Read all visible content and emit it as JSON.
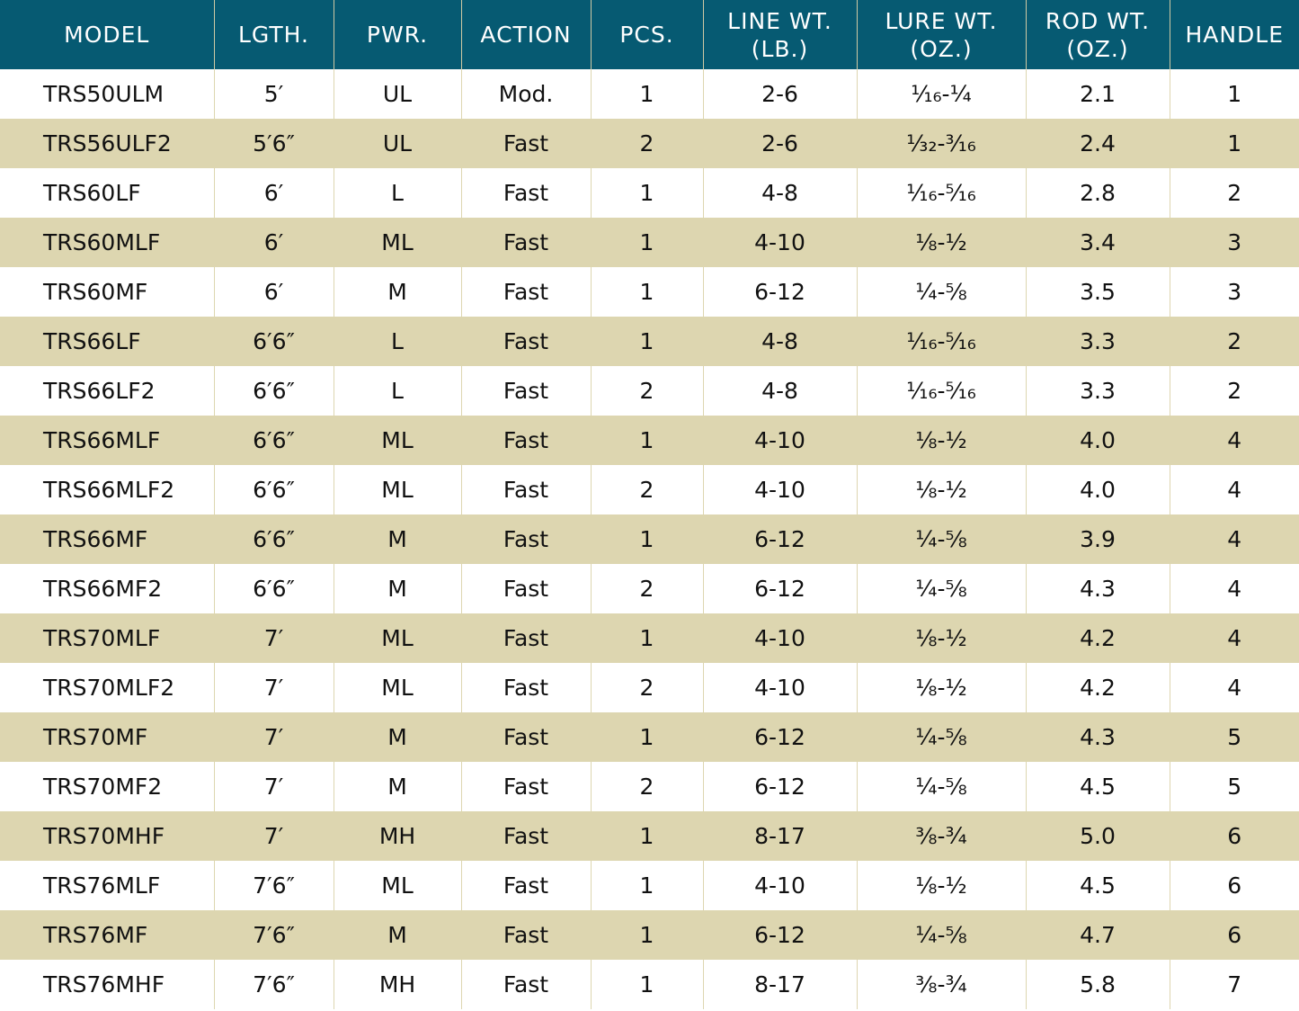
{
  "table": {
    "headers": [
      "MODEL",
      "LGTH.",
      "PWR.",
      "ACTION",
      "PCS.",
      "LINE WT.\n(LB.)",
      "LURE WT.\n(OZ.)",
      "ROD WT.\n(OZ.)",
      "HANDLE"
    ],
    "rows": [
      [
        "TRS50ULM",
        "5′",
        "UL",
        "Mod.",
        "1",
        "2-6",
        "¹⁄₁₆-¼",
        "2.1",
        "1"
      ],
      [
        "TRS56ULF2",
        "5′6″",
        "UL",
        "Fast",
        "2",
        "2-6",
        "¹⁄₃₂-³⁄₁₆",
        "2.4",
        "1"
      ],
      [
        "TRS60LF",
        "6′",
        "L",
        "Fast",
        "1",
        "4-8",
        "¹⁄₁₆-⁵⁄₁₆",
        "2.8",
        "2"
      ],
      [
        "TRS60MLF",
        "6′",
        "ML",
        "Fast",
        "1",
        "4-10",
        "⅛-½",
        "3.4",
        "3"
      ],
      [
        "TRS60MF",
        "6′",
        "M",
        "Fast",
        "1",
        "6-12",
        "¼-⅝",
        "3.5",
        "3"
      ],
      [
        "TRS66LF",
        "6′6″",
        "L",
        "Fast",
        "1",
        "4-8",
        "¹⁄₁₆-⁵⁄₁₆",
        "3.3",
        "2"
      ],
      [
        "TRS66LF2",
        "6′6″",
        "L",
        "Fast",
        "2",
        "4-8",
        "¹⁄₁₆-⁵⁄₁₆",
        "3.3",
        "2"
      ],
      [
        "TRS66MLF",
        "6′6″",
        "ML",
        "Fast",
        "1",
        "4-10",
        "⅛-½",
        "4.0",
        "4"
      ],
      [
        "TRS66MLF2",
        "6′6″",
        "ML",
        "Fast",
        "2",
        "4-10",
        "⅛-½",
        "4.0",
        "4"
      ],
      [
        "TRS66MF",
        "6′6″",
        "M",
        "Fast",
        "1",
        "6-12",
        "¼-⅝",
        "3.9",
        "4"
      ],
      [
        "TRS66MF2",
        "6′6″",
        "M",
        "Fast",
        "2",
        "6-12",
        "¼-⅝",
        "4.3",
        "4"
      ],
      [
        "TRS70MLF",
        "7′",
        "ML",
        "Fast",
        "1",
        "4-10",
        "⅛-½",
        "4.2",
        "4"
      ],
      [
        "TRS70MLF2",
        "7′",
        "ML",
        "Fast",
        "2",
        "4-10",
        "⅛-½",
        "4.2",
        "4"
      ],
      [
        "TRS70MF",
        "7′",
        "M",
        "Fast",
        "1",
        "6-12",
        "¼-⅝",
        "4.3",
        "5"
      ],
      [
        "TRS70MF2",
        "7′",
        "M",
        "Fast",
        "2",
        "6-12",
        "¼-⅝",
        "4.5",
        "5"
      ],
      [
        "TRS70MHF",
        "7′",
        "MH",
        "Fast",
        "1",
        "8-17",
        "⅜-¾",
        "5.0",
        "6"
      ],
      [
        "TRS76MLF",
        "7′6″",
        "ML",
        "Fast",
        "1",
        "4-10",
        "⅛-½",
        "4.5",
        "6"
      ],
      [
        "TRS76MF",
        "7′6″",
        "M",
        "Fast",
        "1",
        "6-12",
        "¼-⅝",
        "4.7",
        "6"
      ],
      [
        "TRS76MHF",
        "7′6″",
        "MH",
        "Fast",
        "1",
        "8-17",
        "⅜-¾",
        "5.8",
        "7"
      ]
    ]
  }
}
